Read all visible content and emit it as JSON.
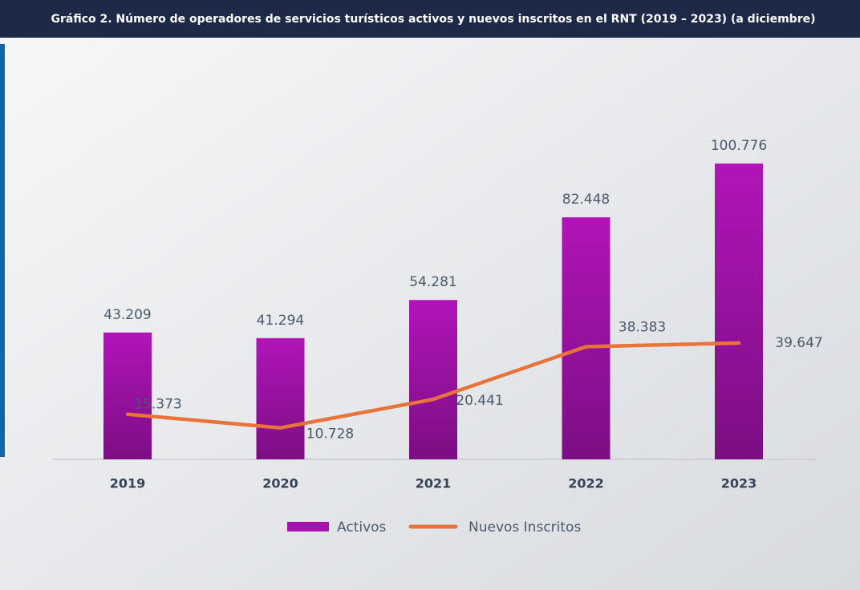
{
  "chart_data": {
    "type": "bar",
    "title": "Gráfico 2. Número de operadores de servicios turísticos activos y nuevos inscritos en el RNT (2019 – 2023) (a diciembre)",
    "categories": [
      "2019",
      "2020",
      "2021",
      "2022",
      "2023"
    ],
    "series": [
      {
        "name": "Activos",
        "type": "bar",
        "color": "#a513ad",
        "values": [
          43209,
          41294,
          54281,
          82448,
          100776
        ],
        "value_labels": [
          "43.209",
          "41.294",
          "54.281",
          "82.448",
          "100.776"
        ]
      },
      {
        "name": "Nuevos Inscritos",
        "type": "line",
        "color": "#e8743b",
        "values": [
          15373,
          10728,
          20441,
          38383,
          39647
        ],
        "value_labels": [
          "15.373",
          "10.728",
          "20.441",
          "38.383",
          "39.647"
        ]
      }
    ],
    "legend": "bottom"
  }
}
